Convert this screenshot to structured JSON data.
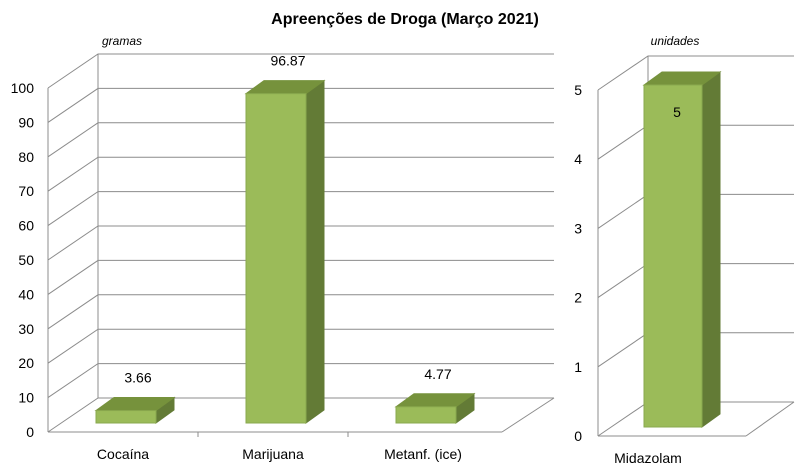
{
  "chart_data": [
    {
      "type": "bar",
      "title": "Apreenções de Droga (Março 2021)",
      "unit_label": "gramas",
      "categories": [
        "Cocaína",
        "Marijuana",
        "Metanf. (ice)"
      ],
      "values": [
        3.66,
        96.87,
        4.77
      ],
      "value_labels": [
        "3.66",
        "96.87",
        "4.77"
      ],
      "ylim": [
        0,
        100
      ],
      "yticks": [
        "0",
        "10",
        "20",
        "30",
        "40",
        "50",
        "60",
        "70",
        "80",
        "90",
        "100"
      ],
      "grid": true,
      "style": "3d",
      "bar_color_front": "#9BBB59",
      "bar_color_side": "#637B36",
      "bar_color_top": "#76923C"
    },
    {
      "type": "bar",
      "unit_label": "unidades",
      "categories": [
        "Midazolam"
      ],
      "values": [
        5
      ],
      "value_labels": [
        "5"
      ],
      "ylim": [
        0,
        5
      ],
      "yticks": [
        "0",
        "1",
        "2",
        "3",
        "4",
        "5"
      ],
      "grid": true,
      "style": "3d",
      "bar_color_front": "#9BBB59",
      "bar_color_side": "#637B36",
      "bar_color_top": "#76923C"
    }
  ]
}
